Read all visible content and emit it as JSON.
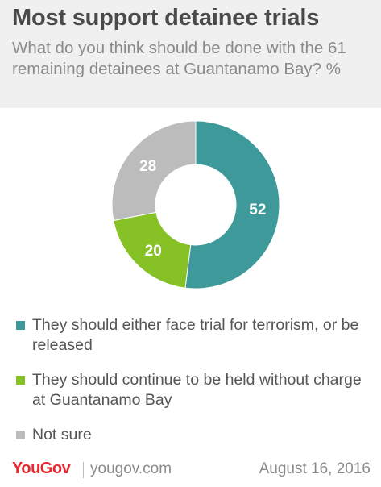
{
  "header": {
    "title": "Most support detainee trials",
    "subtitle": "What do you think should be done with the 61 remaining detainees at Guantanamo Bay? %"
  },
  "chart_data": {
    "type": "pie",
    "donut": true,
    "categories": [
      "They should either face trial for terrorism, or be released",
      "They should continue to be held without charge at Guantanamo Bay",
      "Not sure"
    ],
    "values": [
      52,
      20,
      28
    ],
    "colors": [
      "#3e999a",
      "#86c226",
      "#bcbcbc"
    ],
    "data_labels": [
      "52",
      "20",
      "28"
    ],
    "legend": "bottom"
  },
  "footer": {
    "logo": "YouGov",
    "site": "yougov.com",
    "date": "August 16, 2016"
  }
}
